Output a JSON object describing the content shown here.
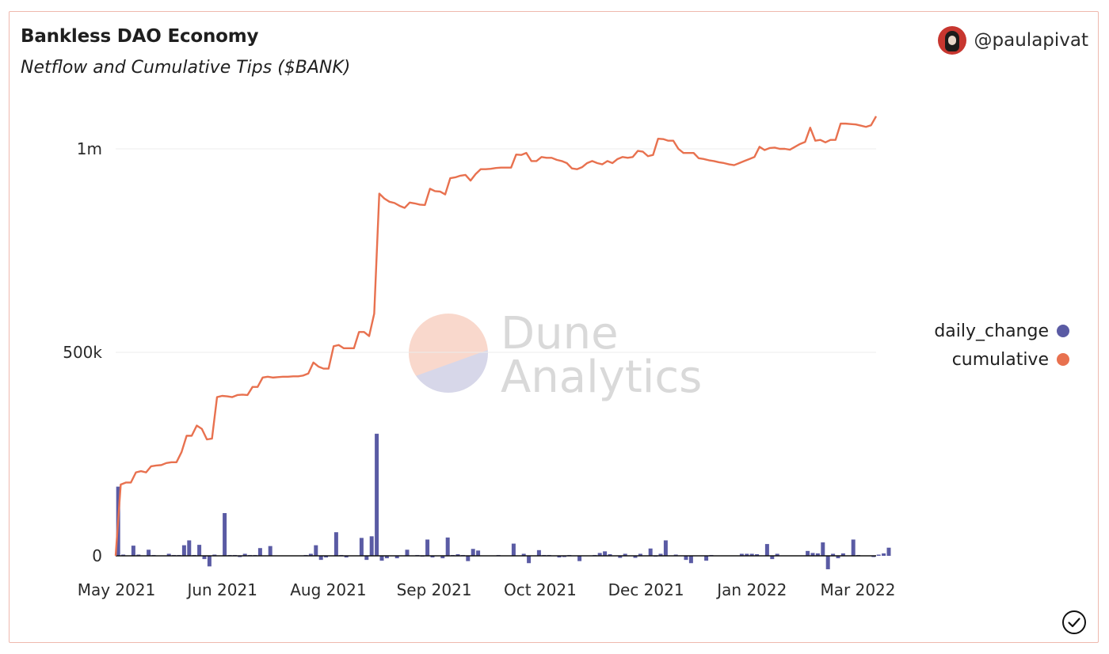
{
  "header": {
    "title": "Bankless DAO Economy",
    "subtitle": "Netflow and Cumulative Tips ($BANK)",
    "author": "@paulapivat"
  },
  "watermark": {
    "line1": "Dune",
    "line2": "Analytics"
  },
  "colors": {
    "daily_change": "#5a5ba4",
    "cumulative": "#e8714f",
    "border": "#efb9ae",
    "grid": "#ececec"
  },
  "chart_data": {
    "type": "bar+line",
    "x_tick_labels": [
      "May 2021",
      "Jun 2021",
      "Aug 2021",
      "Sep 2021",
      "Oct 2021",
      "Dec 2021",
      "Jan 2022",
      "Mar 2022"
    ],
    "y_tick_labels": [
      "0",
      "500k",
      "1m"
    ],
    "ylim": [
      0,
      1080000
    ],
    "legend_position": "right",
    "grid": true,
    "series": [
      {
        "name": "daily_change",
        "type": "bar",
        "values": [
          170000,
          3000,
          1000,
          25000,
          3000,
          1000,
          15000,
          2000,
          1000,
          1000,
          5000,
          2000,
          2000,
          26000,
          38000,
          2000,
          27000,
          -8000,
          -26000,
          3000,
          1000,
          105000,
          2000,
          2000,
          -3000,
          5000,
          2000,
          2000,
          19000,
          1000,
          24000,
          1000,
          1000,
          1000,
          1000,
          1000,
          1000,
          2000,
          5000,
          26000,
          -10000,
          -4000,
          1000,
          58000,
          2000,
          -4000,
          1000,
          1000,
          44000,
          -10000,
          48000,
          300000,
          -12000,
          -6000,
          1000,
          -6000,
          1000,
          15000,
          1000,
          2000,
          -2000,
          40000,
          -4000,
          1000,
          -6000,
          45000,
          2000,
          4000,
          2000,
          -13000,
          17000,
          13000,
          1000,
          1000,
          1000,
          2000,
          1000,
          1000,
          30000,
          1000,
          5000,
          -18000,
          1000,
          14000,
          2000,
          2000,
          1000,
          -4000,
          -3000,
          2000,
          1000,
          -13000,
          1000,
          1000,
          2000,
          7000,
          11000,
          4000,
          1000,
          -5000,
          5000,
          1000,
          -5000,
          5000,
          1000,
          18000,
          -2000,
          5000,
          38000,
          1000,
          3000,
          1000,
          -10000,
          -18000,
          1000,
          1000,
          -12000,
          2000,
          1000,
          1000,
          1000,
          1000,
          1000,
          5000,
          5000,
          5000,
          4000,
          1000,
          29000,
          -8000,
          5000,
          1000,
          1000,
          1000,
          1000,
          1000,
          12000,
          7000,
          6000,
          33000,
          -33000,
          5000,
          -6000,
          6000,
          1000,
          40000,
          2000,
          1000,
          1000,
          -3000,
          3000,
          6000,
          20000
        ]
      },
      {
        "name": "cumulative",
        "type": "line",
        "values": [
          0,
          175000,
          180000,
          180000,
          205000,
          208000,
          205000,
          220000,
          222000,
          223000,
          228000,
          230000,
          230000,
          255000,
          295000,
          295000,
          320000,
          312000,
          286000,
          288000,
          390000,
          393000,
          392000,
          390000,
          395000,
          396000,
          395000,
          415000,
          415000,
          438000,
          440000,
          438000,
          439000,
          440000,
          440000,
          441000,
          441000,
          443000,
          448000,
          475000,
          465000,
          460000,
          460000,
          515000,
          518000,
          510000,
          510000,
          510000,
          550000,
          550000,
          540000,
          595000,
          890000,
          878000,
          870000,
          867000,
          860000,
          855000,
          868000,
          866000,
          863000,
          862000,
          902000,
          896000,
          895000,
          888000,
          928000,
          930000,
          934000,
          936000,
          922000,
          938000,
          950000,
          950000,
          951000,
          953000,
          954000,
          954000,
          954000,
          986000,
          985000,
          990000,
          970000,
          970000,
          980000,
          978000,
          978000,
          973000,
          970000,
          965000,
          952000,
          950000,
          955000,
          965000,
          970000,
          965000,
          962000,
          970000,
          965000,
          975000,
          980000,
          978000,
          980000,
          995000,
          993000,
          982000,
          985000,
          1025000,
          1024000,
          1020000,
          1020000,
          1000000,
          990000,
          990000,
          990000,
          977000,
          975000,
          972000,
          970000,
          967000,
          965000,
          962000,
          960000,
          965000,
          970000,
          975000,
          980000,
          1005000,
          997000,
          1002000,
          1003000,
          1000000,
          1000000,
          998000,
          1005000,
          1012000,
          1017000,
          1052000,
          1020000,
          1022000,
          1016000,
          1022000,
          1022000,
          1062000,
          1062000,
          1061000,
          1060000,
          1057000,
          1054000,
          1058000,
          1080000
        ]
      }
    ]
  }
}
